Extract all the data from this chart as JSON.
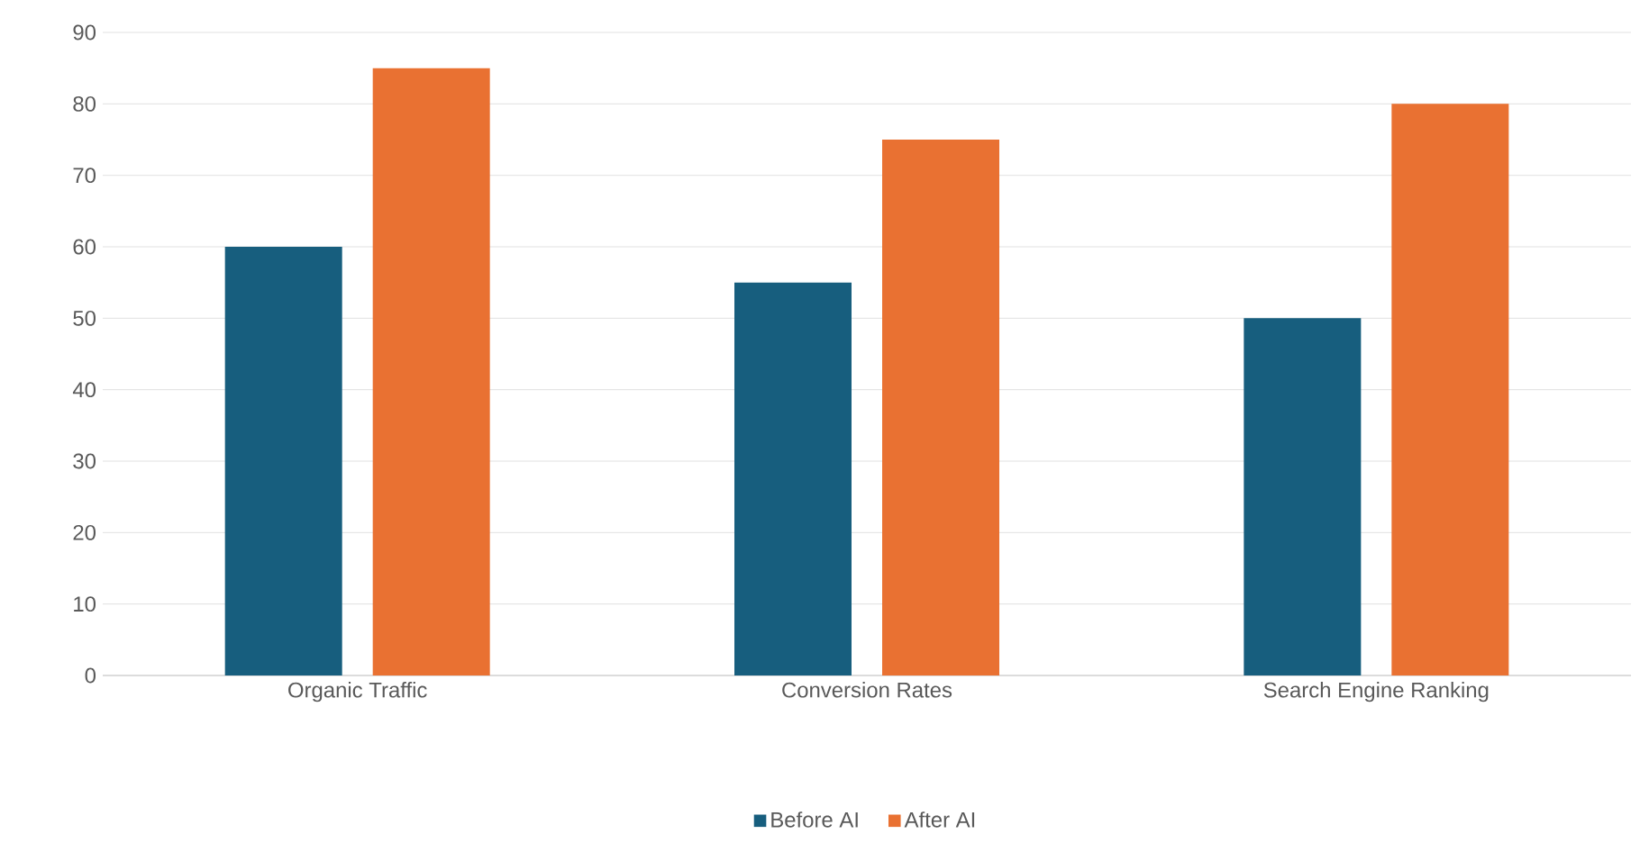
{
  "chart_data": {
    "type": "bar",
    "categories": [
      "Organic Traffic",
      "Conversion Rates",
      "Search Engine Ranking"
    ],
    "series": [
      {
        "name": "Before AI",
        "color": "#175e7e",
        "values": [
          60,
          55,
          50
        ]
      },
      {
        "name": "After AI",
        "color": "#e97132",
        "values": [
          85,
          75,
          80
        ]
      }
    ],
    "ylim": [
      0,
      90
    ],
    "yticks": [
      0,
      10,
      20,
      30,
      40,
      50,
      60,
      70,
      80,
      90
    ],
    "grid": "y",
    "legend": "bottom"
  }
}
